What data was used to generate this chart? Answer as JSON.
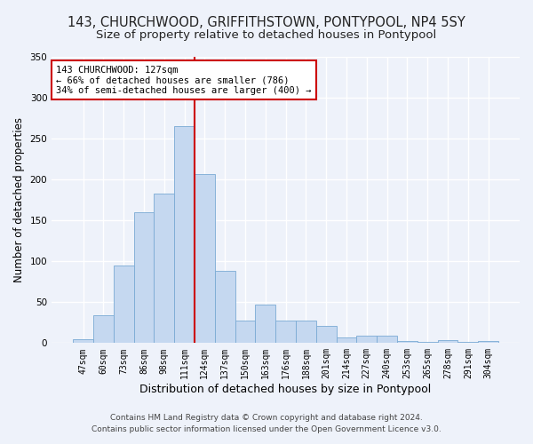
{
  "title_line1": "143, CHURCHWOOD, GRIFFITHSTOWN, PONTYPOOL, NP4 5SY",
  "title_line2": "Size of property relative to detached houses in Pontypool",
  "xlabel": "Distribution of detached houses by size in Pontypool",
  "ylabel": "Number of detached properties",
  "bar_color": "#c5d8f0",
  "bar_edge_color": "#7aaad4",
  "categories": [
    "47sqm",
    "60sqm",
    "73sqm",
    "86sqm",
    "98sqm",
    "111sqm",
    "124sqm",
    "137sqm",
    "150sqm",
    "163sqm",
    "176sqm",
    "188sqm",
    "201sqm",
    "214sqm",
    "227sqm",
    "240sqm",
    "253sqm",
    "265sqm",
    "278sqm",
    "291sqm",
    "304sqm"
  ],
  "values": [
    5,
    34,
    95,
    160,
    183,
    265,
    207,
    88,
    27,
    47,
    27,
    27,
    21,
    7,
    9,
    9,
    2,
    1,
    4,
    1,
    3
  ],
  "vline_index": 6,
  "vline_color": "#cc0000",
  "annotation_text": "143 CHURCHWOOD: 127sqm\n← 66% of detached houses are smaller (786)\n34% of semi-detached houses are larger (400) →",
  "annotation_box_color": "#ffffff",
  "annotation_box_edge": "#cc0000",
  "footer_line1": "Contains HM Land Registry data © Crown copyright and database right 2024.",
  "footer_line2": "Contains public sector information licensed under the Open Government Licence v3.0.",
  "ylim": [
    0,
    350
  ],
  "background_color": "#eef2fa",
  "grid_color": "#ffffff",
  "title1_fontsize": 10.5,
  "title2_fontsize": 9.5,
  "tick_fontsize": 7,
  "ylabel_fontsize": 8.5,
  "xlabel_fontsize": 9,
  "footer_fontsize": 6.5
}
